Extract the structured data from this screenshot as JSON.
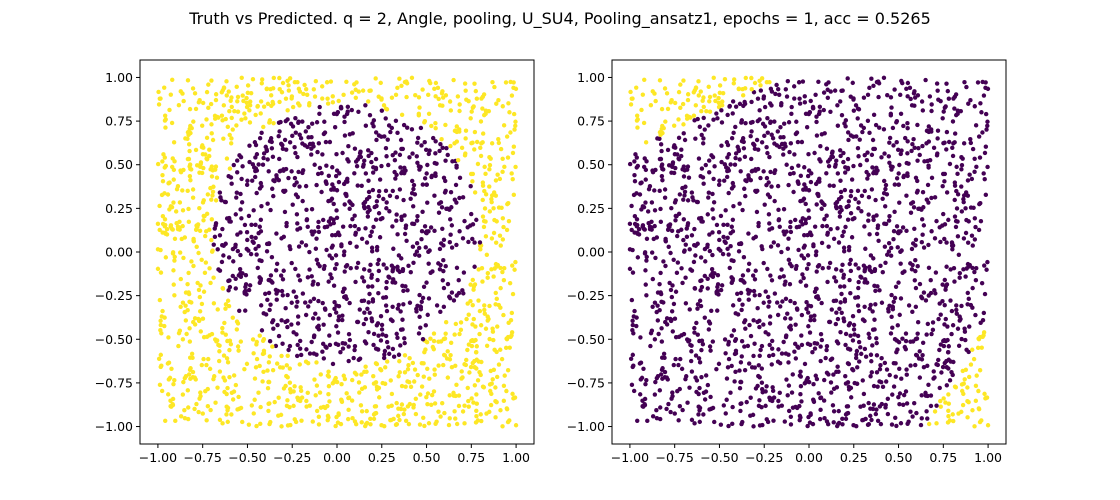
{
  "figure": {
    "title": "Truth vs Predicted. q = 2, Angle, pooling, U_SU4, Pooling_ansatz1, epochs = 1, acc = 0.5265"
  },
  "colors": {
    "class_0": "#440154",
    "class_1": "#fde725"
  },
  "chart_data": [
    {
      "type": "scatter",
      "title": "",
      "xlabel": "",
      "ylabel": "",
      "xlim": [
        -1.1,
        1.1
      ],
      "ylim": [
        -1.1,
        1.1
      ],
      "xticks": [
        "−1.00",
        "−0.75",
        "−0.50",
        "−0.25",
        "0.00",
        "0.25",
        "0.50",
        "0.75",
        "1.00"
      ],
      "yticks": [
        "−1.00",
        "−0.75",
        "−0.50",
        "−0.25",
        "0.00",
        "0.25",
        "0.50",
        "0.75",
        "1.00"
      ],
      "grid": false,
      "legend": "none",
      "num_points": 2000,
      "classes": [
        {
          "label": "0",
          "region": "inside circle centered (0.05, 0.10) radius 0.75",
          "color": "#440154"
        },
        {
          "label": "1",
          "region": "outside circle",
          "color": "#fde725"
        }
      ]
    },
    {
      "type": "scatter",
      "title": "",
      "xlabel": "",
      "ylabel": "",
      "xlim": [
        -1.1,
        1.1
      ],
      "ylim": [
        -1.1,
        1.1
      ],
      "xticks": [
        "−1.00",
        "−0.75",
        "−0.50",
        "−0.25",
        "0.00",
        "0.25",
        "0.50",
        "0.75",
        "1.00"
      ],
      "yticks": [
        "−1.00",
        "−0.75",
        "−0.50",
        "−0.25",
        "0.00",
        "0.25",
        "0.50",
        "0.75",
        "1.00"
      ],
      "grid": false,
      "legend": "none",
      "num_points": 2000,
      "classes": [
        {
          "label": "1",
          "region": "top-left corner above line through (-1.0, 0.58) and (-0.05, 1.05); bottom-right corner below line through (0.62, -1.05) and (1.02, -0.35)",
          "color": "#fde725"
        },
        {
          "label": "0",
          "region": "everywhere else",
          "color": "#440154"
        }
      ]
    }
  ]
}
